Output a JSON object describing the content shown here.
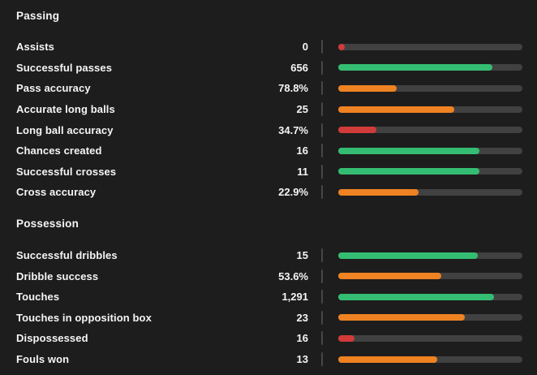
{
  "colors": {
    "background": "#1d1d1d",
    "text": "#f5f5f5",
    "track": "#414141",
    "divider": "#474747",
    "green": "#34bd72",
    "orange": "#ef8222",
    "red": "#d13b39"
  },
  "sections": [
    {
      "title": "Passing",
      "rows": [
        {
          "label": "Assists",
          "value": "0",
          "percent": 3,
          "color": "red"
        },
        {
          "label": "Successful passes",
          "value": "656",
          "percent": 84,
          "color": "green"
        },
        {
          "label": "Pass accuracy",
          "value": "78.8%",
          "percent": 32,
          "color": "orange"
        },
        {
          "label": "Accurate long balls",
          "value": "25",
          "percent": 63,
          "color": "orange"
        },
        {
          "label": "Long ball accuracy",
          "value": "34.7%",
          "percent": 21,
          "color": "red"
        },
        {
          "label": "Chances created",
          "value": "16",
          "percent": 77,
          "color": "green"
        },
        {
          "label": "Successful crosses",
          "value": "11",
          "percent": 77,
          "color": "green"
        },
        {
          "label": "Cross accuracy",
          "value": "22.9%",
          "percent": 44,
          "color": "orange"
        }
      ]
    },
    {
      "title": "Possession",
      "rows": [
        {
          "label": "Successful dribbles",
          "value": "15",
          "percent": 76,
          "color": "green"
        },
        {
          "label": "Dribble success",
          "value": "53.6%",
          "percent": 56,
          "color": "orange"
        },
        {
          "label": "Touches",
          "value": "1,291",
          "percent": 85,
          "color": "green"
        },
        {
          "label": "Touches in opposition box",
          "value": "23",
          "percent": 69,
          "color": "orange"
        },
        {
          "label": "Dispossessed",
          "value": "16",
          "percent": 9,
          "color": "red"
        },
        {
          "label": "Fouls won",
          "value": "13",
          "percent": 54,
          "color": "orange"
        }
      ]
    }
  ]
}
